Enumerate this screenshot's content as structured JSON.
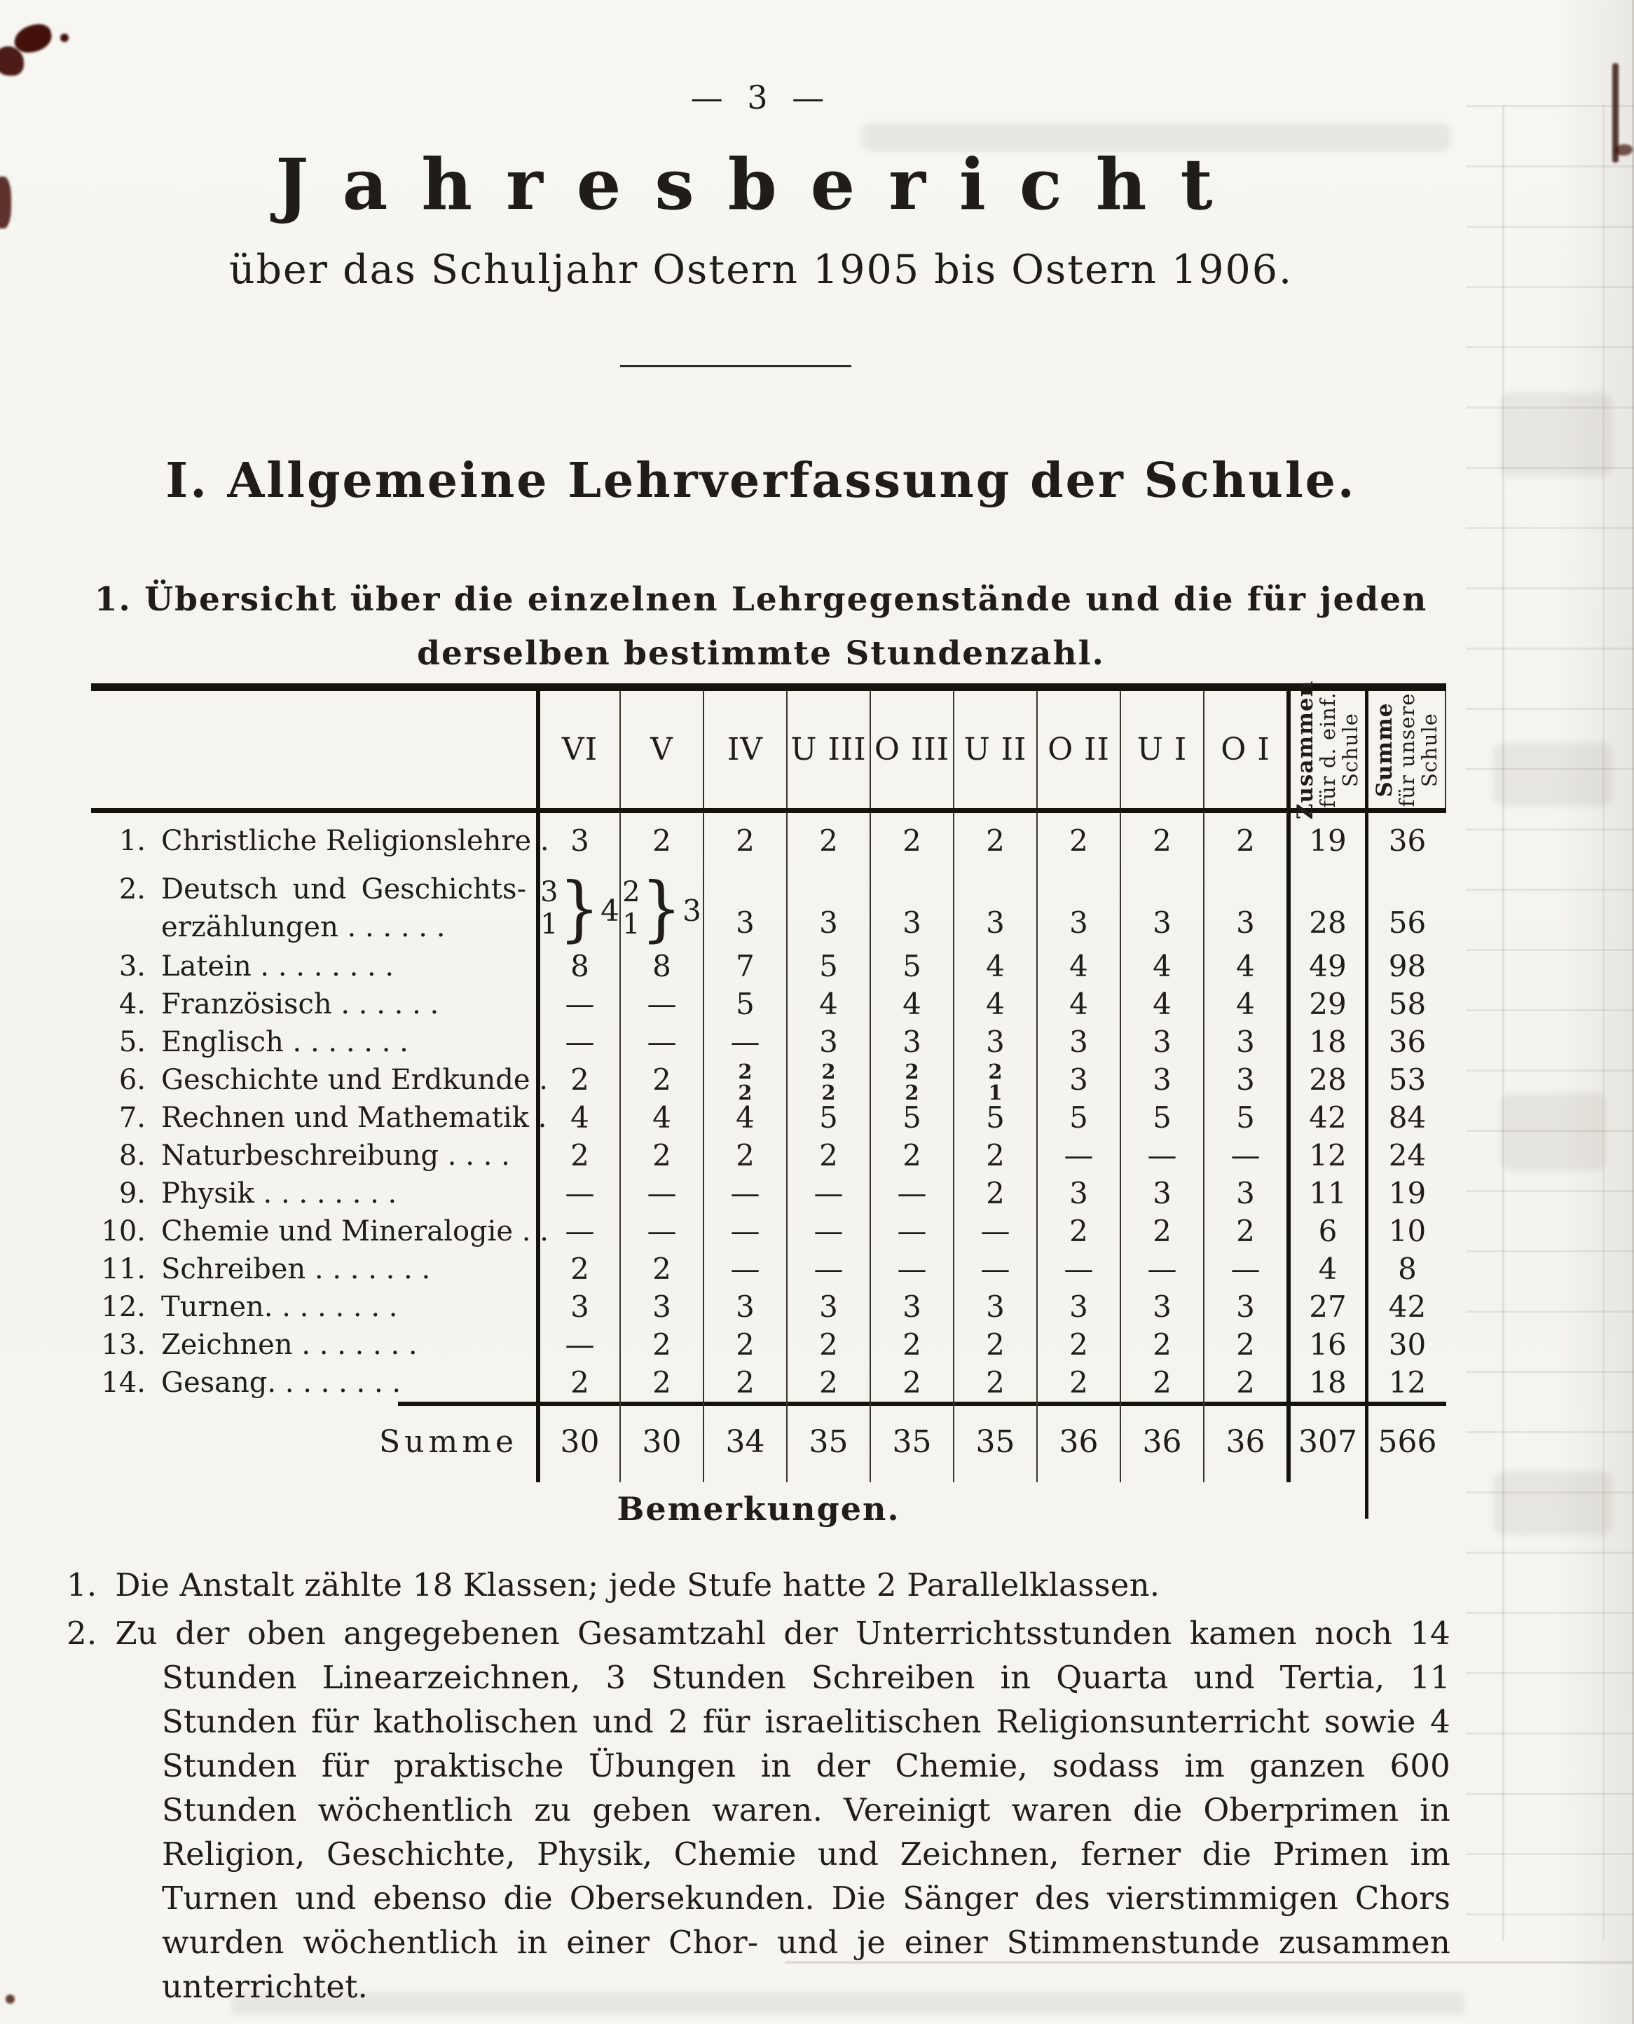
{
  "page": {
    "number_display": "—   3   —"
  },
  "header": {
    "title": "Jahresbericht",
    "subtitle": "über das Schuljahr Ostern 1905 bis Ostern 1906."
  },
  "section": {
    "heading": "I. Allgemeine Lehrverfassung der Schule."
  },
  "subsection": {
    "line1": "1. Übersicht über die einzelnen Lehrgegenstände und die für jeden",
    "line2": "derselben bestimmte Stundenzahl."
  },
  "table": {
    "class_headers": [
      "VI",
      "V",
      "IV",
      "U III",
      "O III",
      "U II",
      "O II",
      "U I",
      "O I"
    ],
    "col_zusammen": {
      "line1": "Zusammen",
      "line2": "für d. einf.",
      "line3": "Schule"
    },
    "col_summe": {
      "line1": "Summe",
      "line2": "für unsere",
      "line3": "Schule"
    },
    "rows": [
      {
        "num": "1.",
        "label": "Christliche Religionslehre   .",
        "cells": [
          "3",
          "2",
          "2",
          "2",
          "2",
          "2",
          "2",
          "2",
          "2",
          "19",
          "36"
        ]
      },
      {
        "num": "2.",
        "label_line1": "Deutsch und Geschichts-",
        "label_line2": "erzählungen .   .   .   .   .   .",
        "stack_vi": {
          "top": "3",
          "bottom": "1",
          "sum": "4"
        },
        "stack_v": {
          "top": "2",
          "bottom": "1",
          "sum": "3"
        },
        "cells": [
          "3",
          "3",
          "3",
          "3",
          "3",
          "3",
          "3",
          "28",
          "56"
        ]
      },
      {
        "num": "3.",
        "label": "Latein .  .   .   .   .   .   .   .",
        "cells": [
          "8",
          "8",
          "7",
          "5",
          "5",
          "4",
          "4",
          "4",
          "4",
          "49",
          "98"
        ]
      },
      {
        "num": "4.",
        "label": "Französisch  .   .   .   .   .   .",
        "cells": [
          "—",
          "—",
          "5",
          "4",
          "4",
          "4",
          "4",
          "4",
          "4",
          "29",
          "58"
        ]
      },
      {
        "num": "5.",
        "label": "Englisch  .  .   .   .   .   .   .",
        "cells": [
          "—",
          "—",
          "—",
          "3",
          "3",
          "3",
          "3",
          "3",
          "3",
          "18",
          "36"
        ]
      },
      {
        "num": "6.",
        "label": "Geschichte und Erdkunde   .",
        "cells": [
          "2",
          "2",
          {
            "a": "2",
            "b": "2"
          },
          {
            "a": "2",
            "b": "2"
          },
          {
            "a": "2",
            "b": "2"
          },
          {
            "a": "2",
            "b": "1"
          },
          "3",
          "3",
          "3",
          "28",
          "53"
        ]
      },
      {
        "num": "7.",
        "label": "Rechnen und Mathematik   .",
        "cells": [
          "4",
          "4",
          "4",
          "5",
          "5",
          "5",
          "5",
          "5",
          "5",
          "42",
          "84"
        ]
      },
      {
        "num": "8.",
        "label": "Naturbeschreibung .   .   .   .",
        "cells": [
          "2",
          "2",
          "2",
          "2",
          "2",
          "2",
          "—",
          "—",
          "—",
          "12",
          "24"
        ]
      },
      {
        "num": "9.",
        "label": "Physik .   .   .   .   .   .   .   .",
        "cells": [
          "—",
          "—",
          "—",
          "—",
          "—",
          "2",
          "3",
          "3",
          "3",
          "11",
          "19"
        ]
      },
      {
        "num": "10.",
        "label": "Chemie und Mineralogie .  .",
        "cells": [
          "—",
          "—",
          "—",
          "—",
          "—",
          "—",
          "2",
          "2",
          "2",
          "6",
          "10"
        ]
      },
      {
        "num": "11.",
        "label": "Schreiben .   .   .   .   .   .   .",
        "cells": [
          "2",
          "2",
          "—",
          "—",
          "—",
          "—",
          "—",
          "—",
          "—",
          "4",
          "8"
        ]
      },
      {
        "num": "12.",
        "label": "Turnen.   .   .   .   .   .   .   .",
        "cells": [
          "3",
          "3",
          "3",
          "3",
          "3",
          "3",
          "3",
          "3",
          "3",
          "27",
          "42"
        ]
      },
      {
        "num": "13.",
        "label": "Zeichnen  .   .   .   .   .   .   .",
        "cells": [
          "—",
          "2",
          "2",
          "2",
          "2",
          "2",
          "2",
          "2",
          "2",
          "16",
          "30"
        ]
      },
      {
        "num": "14.",
        "label": "Gesang.   .   .   .   .   .   .   .",
        "cells": [
          "2",
          "2",
          "2",
          "2",
          "2",
          "2",
          "2",
          "2",
          "2",
          "18",
          "12"
        ]
      }
    ],
    "summe": {
      "label": "Summe",
      "cells": [
        "30",
        "30",
        "34",
        "35",
        "35",
        "35",
        "36",
        "36",
        "36",
        "307",
        "566"
      ]
    }
  },
  "remarks": {
    "heading": "Bemerkungen.",
    "items": [
      {
        "num": "1.",
        "text": "Die Anstalt zählte 18 Klassen; jede Stufe hatte 2 Parallelklassen."
      },
      {
        "num": "2.",
        "text": "Zu der oben angegebenen Gesamtzahl der Unterrichtsstunden kamen noch 14 Stunden Linearzeichnen, 3 Stunden Schreiben in Quarta und Tertia, 11 Stunden für katholischen und 2 für israelitischen Religionsunterricht sowie 4 Stunden für praktische Übungen in der Chemie, sodass im ganzen 600 Stunden wöchentlich zu geben waren.  Vereinigt waren die Oberprimen in Religion, Geschichte, Physik, Chemie und Zeichnen, ferner die Primen im Turnen und ebenso die Obersekunden.  Die Sänger des vierstimmigen Chors wurden wöchentlich in einer Chor- und je einer Stimmenstunde zusammen unterrichtet."
      }
    ]
  },
  "colors": {
    "paper": "#f6f5f1",
    "ink": "#201d18",
    "table_rule": "#16130d",
    "stain_red": "#43100a"
  }
}
